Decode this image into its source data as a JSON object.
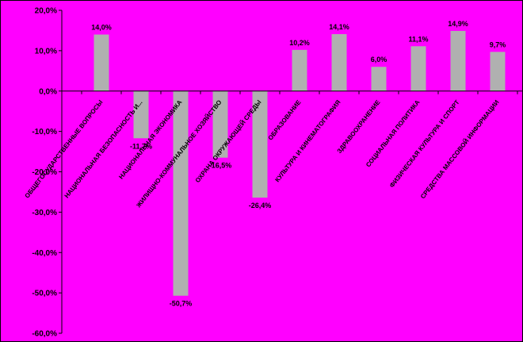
{
  "chart_data": {
    "type": "bar",
    "categories": [
      "ОБЩЕГОСУДАРСТВЕННЫЕ ВОПРОСЫ",
      "НАЦИОНАЛЬНАЯ БЕЗОПАСНОСТЬ И...",
      "НАЦИОНАЛЬНАЯ ЭКОНОМИКА",
      "ЖИЛИЩНО-КОММУНАЛЬНОЕ ХОЗЯЙСТВО",
      "ОХРАНА ОКРУЖАЮЩЕЙ СРЕДЫ",
      "ОБРАЗОВАНИЕ",
      "КУЛЬТУРА И КИНЕМАТОГРАФИЯ",
      "ЗДРАВООХРАНЕНИЕ",
      "СОЦИАЛЬНАЯ ПОЛИТИКА",
      "ФИЗИЧЕСКАЯ КУЛЬТУРА И СПОРТ",
      "СРЕДСТВА МАССОВОЙ ИНФОРМАЦИИ"
    ],
    "values": [
      14.0,
      -11.7,
      -50.7,
      -16.5,
      -26.4,
      10.2,
      14.1,
      6.0,
      11.1,
      14.9,
      9.7
    ],
    "value_labels": [
      "14,0%",
      "-11,7%",
      "-50,7%",
      "-16,5%",
      "-26,4%",
      "10,2%",
      "14,1%",
      "6,0%",
      "11,1%",
      "14,9%",
      "9,7%"
    ],
    "y_ticks": [
      20,
      10,
      0,
      -10,
      -20,
      -30,
      -40,
      -50,
      -60
    ],
    "y_tick_labels": [
      "20,0%",
      "10,0%",
      "0,0%",
      "-10,0%",
      "-20,0%",
      "-30,0%",
      "-40,0%",
      "-50,0%",
      "-60,0%"
    ],
    "ylim": [
      -60,
      20
    ],
    "title": "",
    "xlabel": "",
    "ylabel": "",
    "grid": false,
    "legend": "none",
    "colors": {
      "background": "#ff00ff",
      "bar": "#b0b0b0",
      "axis": "#000000",
      "frame": "#000000"
    }
  }
}
